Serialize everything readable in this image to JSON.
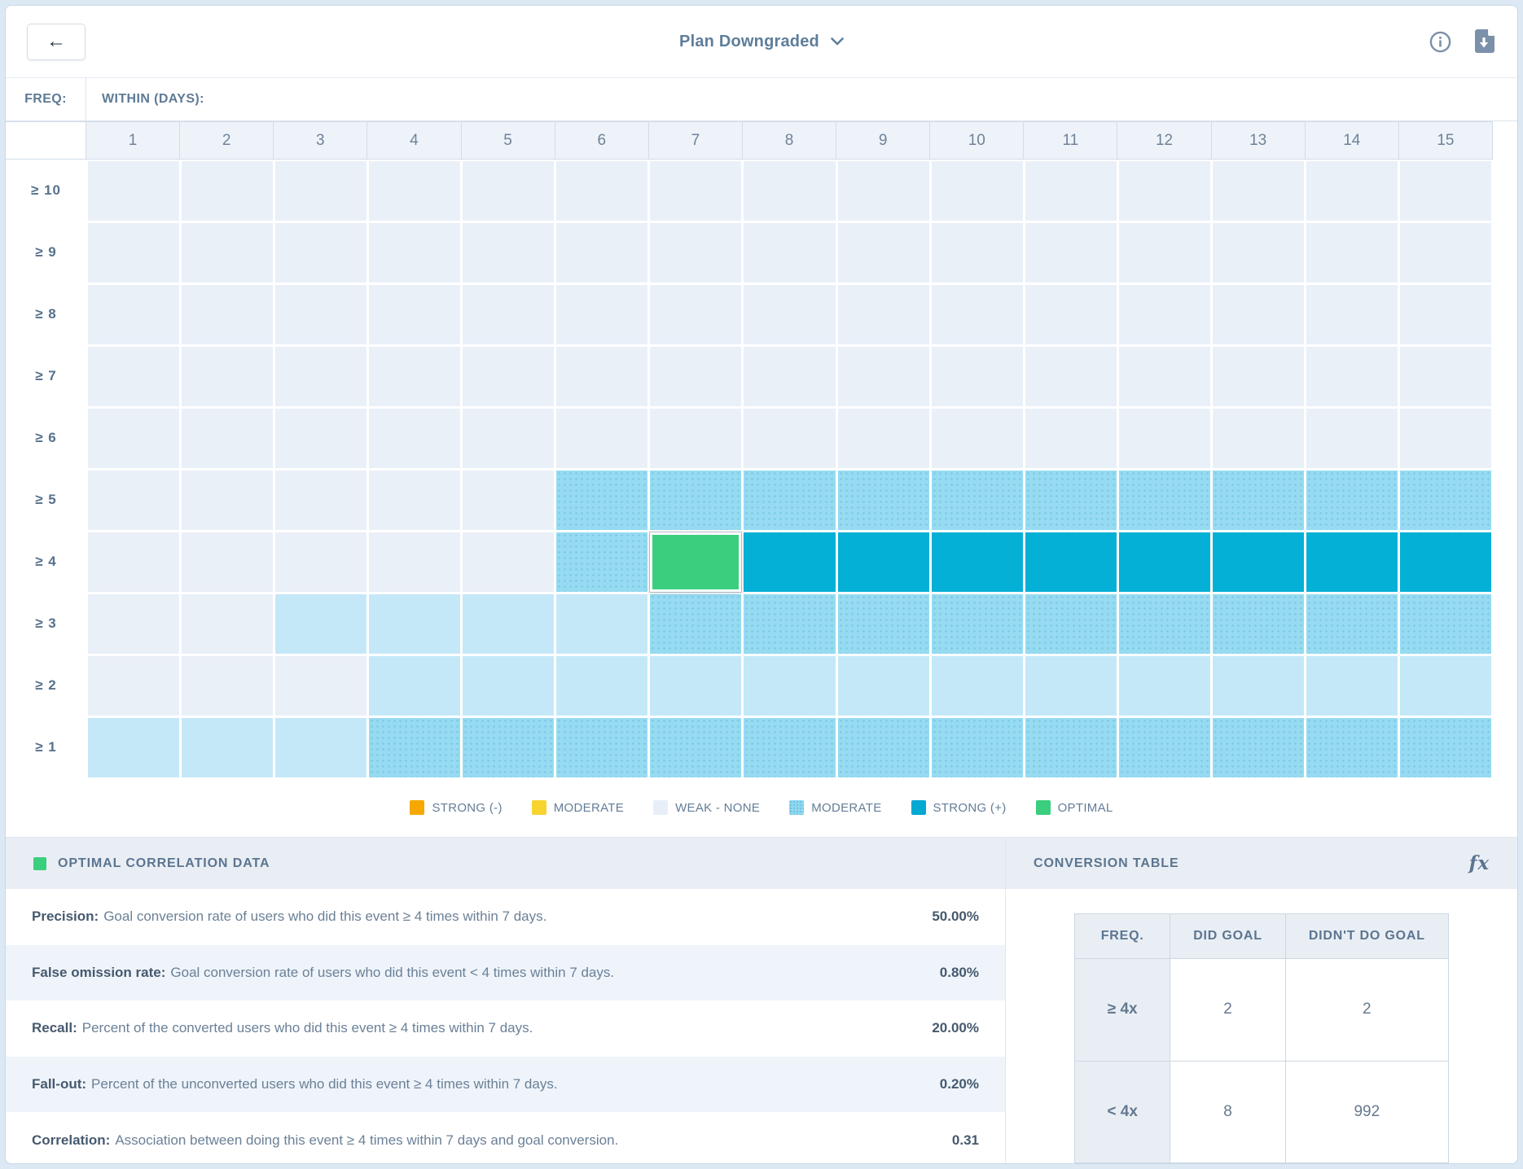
{
  "topbar": {
    "back_label": "←",
    "title": "Plan Downgraded",
    "icons": {
      "info": "info-icon",
      "download": "download-report-icon"
    }
  },
  "colors": {
    "strong_negative": "#F6A800",
    "moderate_negative": "#F8D431",
    "weak_none": "#EAF0F8",
    "moderate_positive": "#96DBF1",
    "strong_positive": "#04B0D6",
    "optimal": "#3BCE7E"
  },
  "heatmap": {
    "freq_label": "FREQ:",
    "within_label": "WITHIN (DAYS):",
    "columns": [
      "1",
      "2",
      "3",
      "4",
      "5",
      "6",
      "7",
      "8",
      "9",
      "10",
      "11",
      "12",
      "13",
      "14",
      "15"
    ],
    "rows": [
      {
        "label": "≥ 10",
        "cells": [
          "w",
          "w",
          "w",
          "w",
          "w",
          "w",
          "w",
          "w",
          "w",
          "w",
          "w",
          "w",
          "w",
          "w",
          "w"
        ]
      },
      {
        "label": "≥ 9",
        "cells": [
          "w",
          "w",
          "w",
          "w",
          "w",
          "w",
          "w",
          "w",
          "w",
          "w",
          "w",
          "w",
          "w",
          "w",
          "w"
        ]
      },
      {
        "label": "≥ 8",
        "cells": [
          "w",
          "w",
          "w",
          "w",
          "w",
          "w",
          "w",
          "w",
          "w",
          "w",
          "w",
          "w",
          "w",
          "w",
          "w"
        ]
      },
      {
        "label": "≥ 7",
        "cells": [
          "w",
          "w",
          "w",
          "w",
          "w",
          "w",
          "w",
          "w",
          "w",
          "w",
          "w",
          "w",
          "w",
          "w",
          "w"
        ]
      },
      {
        "label": "≥ 6",
        "cells": [
          "w",
          "w",
          "w",
          "w",
          "w",
          "w",
          "w",
          "w",
          "w",
          "w",
          "w",
          "w",
          "w",
          "w",
          "w"
        ]
      },
      {
        "label": "≥ 5",
        "cells": [
          "w",
          "w",
          "w",
          "w",
          "w",
          "m",
          "m",
          "m",
          "m",
          "m",
          "m",
          "m",
          "m",
          "m",
          "m"
        ]
      },
      {
        "label": "≥ 4",
        "cells": [
          "w",
          "w",
          "w",
          "w",
          "w",
          "m",
          "o",
          "s",
          "s",
          "s",
          "s",
          "s",
          "s",
          "s",
          "s"
        ]
      },
      {
        "label": "≥ 3",
        "cells": [
          "w",
          "w",
          "l",
          "l",
          "l",
          "l",
          "m",
          "m",
          "m",
          "m",
          "m",
          "m",
          "m",
          "m",
          "m"
        ]
      },
      {
        "label": "≥ 2",
        "cells": [
          "w",
          "w",
          "w",
          "l",
          "l",
          "l",
          "l",
          "l",
          "l",
          "l",
          "l",
          "l",
          "l",
          "l",
          "l"
        ]
      },
      {
        "label": "≥ 1",
        "cells": [
          "l",
          "l",
          "l",
          "m",
          "m",
          "m",
          "m",
          "m",
          "m",
          "m",
          "m",
          "m",
          "m",
          "m",
          "m"
        ]
      }
    ]
  },
  "chart_data": {
    "type": "heatmap",
    "x_label": "WITHIN (DAYS):",
    "y_label": "FREQ:",
    "x": [
      "1",
      "2",
      "3",
      "4",
      "5",
      "6",
      "7",
      "8",
      "9",
      "10",
      "11",
      "12",
      "13",
      "14",
      "15"
    ],
    "y": [
      "≥ 10",
      "≥ 9",
      "≥ 8",
      "≥ 7",
      "≥ 6",
      "≥ 5",
      "≥ 4",
      "≥ 3",
      "≥ 2",
      "≥ 1"
    ],
    "legend_buckets": [
      "STRONG (-)",
      "MODERATE",
      "WEAK - NONE",
      "MODERATE",
      "STRONG (+)",
      "OPTIMAL"
    ],
    "selected_cell": {
      "freq": "≥ 4",
      "days": "7",
      "bucket": "OPTIMAL"
    }
  },
  "legend": {
    "items": [
      {
        "label": "STRONG (-)",
        "swatch": "strongneg"
      },
      {
        "label": "MODERATE",
        "swatch": "modneg"
      },
      {
        "label": "WEAK - NONE",
        "swatch": "weak"
      },
      {
        "label": "MODERATE",
        "swatch": "modpos"
      },
      {
        "label": "STRONG (+)",
        "swatch": "strongpos"
      },
      {
        "label": "OPTIMAL",
        "swatch": "optimal"
      }
    ]
  },
  "optimal_panel": {
    "title": "OPTIMAL CORRELATION DATA",
    "rows": [
      {
        "label": "Precision:",
        "description": "Goal conversion rate of users who did this event ≥ 4 times within 7 days.",
        "value": "50.00%"
      },
      {
        "label": "False omission rate:",
        "description": "Goal conversion rate of users who did this event < 4 times within 7 days.",
        "value": "0.80%"
      },
      {
        "label": "Recall:",
        "description": "Percent of the converted users who did this event ≥ 4 times within 7 days.",
        "value": "20.00%"
      },
      {
        "label": "Fall-out:",
        "description": "Percent of the unconverted users who did this event ≥ 4 times within 7 days.",
        "value": "0.20%"
      },
      {
        "label": "Correlation:",
        "description": "Association between doing this event ≥ 4 times within 7 days and goal conversion.",
        "value": "0.31"
      }
    ]
  },
  "conversion_panel": {
    "title": "CONVERSION TABLE",
    "fx_label": "fx",
    "table": {
      "headers": [
        "FREQ.",
        "DID GOAL",
        "DIDN'T DO GOAL"
      ],
      "rows": [
        {
          "freq": "≥ 4x",
          "did_goal": "2",
          "didnt_do_goal": "2"
        },
        {
          "freq": "< 4x",
          "did_goal": "8",
          "didnt_do_goal": "992"
        }
      ]
    }
  }
}
